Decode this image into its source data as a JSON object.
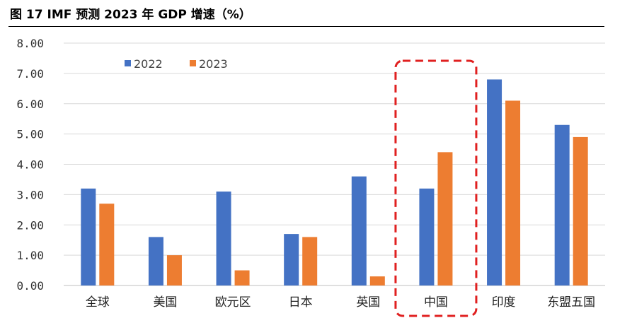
{
  "figure": {
    "title": "图 17   IMF 预测 2023 年 GDP 增速（%）"
  },
  "chart_data": {
    "type": "bar",
    "categories": [
      "全球",
      "美国",
      "欧元区",
      "日本",
      "英国",
      "中国",
      "印度",
      "东盟五国"
    ],
    "series": [
      {
        "name": "2022",
        "values": [
          3.2,
          1.6,
          3.1,
          1.7,
          3.6,
          3.2,
          6.8,
          5.3
        ],
        "color": "#4472C4"
      },
      {
        "name": "2023",
        "values": [
          2.7,
          1.0,
          0.5,
          1.6,
          0.3,
          4.4,
          6.1,
          4.9
        ],
        "color": "#ED7D31"
      }
    ],
    "ylim": [
      0,
      8
    ],
    "yticks": [
      "0.00",
      "1.00",
      "2.00",
      "3.00",
      "4.00",
      "5.00",
      "6.00",
      "7.00",
      "8.00"
    ],
    "grid": true,
    "legend_position": "top-left",
    "highlight": {
      "category": "中国",
      "style": "dashed",
      "color": "#E02020"
    }
  }
}
